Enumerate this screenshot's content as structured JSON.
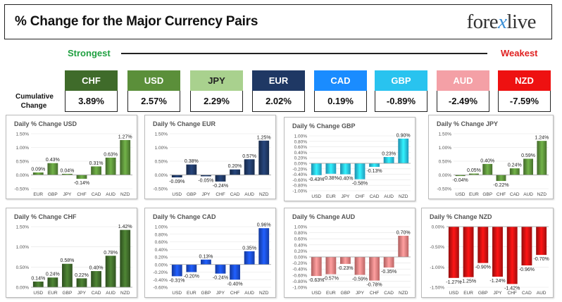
{
  "header": {
    "title": "% Change for the Major Currency Pairs",
    "logo_pre": "fore",
    "logo_x": "x",
    "logo_post": "live"
  },
  "strength": {
    "strongest": "Strongest",
    "weakest": "Weakest",
    "cumulative_label": "Cumulative Change"
  },
  "currencies": [
    {
      "code": "CHF",
      "value": "3.89%",
      "color": "#3f6b2a",
      "text_color": "#ffffff"
    },
    {
      "code": "USD",
      "value": "2.57%",
      "color": "#5b8f3a",
      "text_color": "#ffffff"
    },
    {
      "code": "JPY",
      "value": "2.29%",
      "color": "#a9d18e",
      "text_color": "#222222"
    },
    {
      "code": "EUR",
      "value": "2.02%",
      "color": "#1f3864",
      "text_color": "#ffffff"
    },
    {
      "code": "CAD",
      "value": "0.19%",
      "color": "#1a8cff",
      "text_color": "#ffffff"
    },
    {
      "code": "GBP",
      "value": "-0.89%",
      "color": "#29c3ef",
      "text_color": "#ffffff"
    },
    {
      "code": "AUD",
      "value": "-2.49%",
      "color": "#f4a0a6",
      "text_color": "#ffffff"
    },
    {
      "code": "NZD",
      "value": "-7.59%",
      "color": "#ee1111",
      "text_color": "#ffffff"
    }
  ],
  "chart_data": [
    {
      "type": "bar",
      "title": "Daily % Change USD",
      "categories": [
        "EUR",
        "GBP",
        "JPY",
        "CHF",
        "CAD",
        "AUD",
        "NZD"
      ],
      "values": [
        0.09,
        0.43,
        0.04,
        -0.14,
        0.31,
        0.63,
        1.27
      ],
      "labels": [
        "0.09%",
        "0.43%",
        "0.04%",
        "-0.14%",
        "0.31%",
        "0.63%",
        "1.27%"
      ],
      "ylim": [
        -0.5,
        1.5
      ],
      "yticks": [
        -0.5,
        0,
        0.5,
        1,
        1.5
      ],
      "ytick_labels": [
        "-0.50%",
        "0.00%",
        "0.50%",
        "1.00%",
        "1.50%"
      ],
      "color": "#5b8f3a"
    },
    {
      "type": "bar",
      "title": "Daily % Change EUR",
      "categories": [
        "USD",
        "GBP",
        "JPY",
        "CHF",
        "CAD",
        "AUD",
        "NZD"
      ],
      "values": [
        -0.09,
        0.38,
        -0.05,
        -0.24,
        0.2,
        0.57,
        1.25
      ],
      "labels": [
        "-0.09%",
        "0.38%",
        "-0.05%",
        "-0.24%",
        "0.20%",
        "0.57%",
        "1.25%"
      ],
      "ylim": [
        -0.5,
        1.5
      ],
      "yticks": [
        -0.5,
        0,
        0.5,
        1,
        1.5
      ],
      "ytick_labels": [
        "-0.50%",
        "0.00%",
        "0.50%",
        "1.00%",
        "1.50%"
      ],
      "color": "#1f3864"
    },
    {
      "type": "bar",
      "title": "Daily % Change GBP",
      "categories": [
        "USD",
        "EUR",
        "JPY",
        "CHF",
        "CAD",
        "AUD",
        "NZD"
      ],
      "values": [
        -0.43,
        -0.38,
        -0.4,
        -0.58,
        -0.13,
        0.23,
        0.9
      ],
      "labels": [
        "-0.43%",
        "-0.38%",
        "-0.40%",
        "-0.58%",
        "-0.13%",
        "0.23%",
        "0.90%"
      ],
      "ylim": [
        -1.0,
        1.0
      ],
      "yticks": [
        -1,
        -0.8,
        -0.6,
        -0.4,
        -0.2,
        0,
        0.2,
        0.4,
        0.6,
        0.8,
        1
      ],
      "ytick_labels": [
        "-1.00%",
        "-0.80%",
        "-0.60%",
        "-0.40%",
        "-0.20%",
        "0.00%",
        "0.20%",
        "0.40%",
        "0.60%",
        "0.80%",
        "1.00%"
      ],
      "color": "#29c3ef"
    },
    {
      "type": "bar",
      "title": "Daily % Change JPY",
      "categories": [
        "USD",
        "EUR",
        "GBP",
        "CHF",
        "CAD",
        "AUD",
        "NZD"
      ],
      "values": [
        -0.04,
        0.05,
        0.4,
        -0.22,
        0.24,
        0.59,
        1.24
      ],
      "labels": [
        "-0.04%",
        "0.05%",
        "0.40%",
        "-0.22%",
        "0.24%",
        "0.59%",
        "1.24%"
      ],
      "ylim": [
        -0.5,
        1.5
      ],
      "yticks": [
        -0.5,
        0,
        0.5,
        1,
        1.5
      ],
      "ytick_labels": [
        "-0.50%",
        "0.00%",
        "0.50%",
        "1.00%",
        "1.50%"
      ],
      "color": "#5b8f3a"
    },
    {
      "type": "bar",
      "title": "Daily % Change CHF",
      "categories": [
        "USD",
        "EUR",
        "GBP",
        "JPY",
        "CAD",
        "AUD",
        "NZD"
      ],
      "values": [
        0.14,
        0.24,
        0.58,
        0.22,
        0.4,
        0.78,
        1.42
      ],
      "labels": [
        "0.14%",
        "0.24%",
        "0.58%",
        "0.22%",
        "0.40%",
        "0.78%",
        "1.42%"
      ],
      "ylim": [
        0,
        1.5
      ],
      "yticks": [
        0,
        0.5,
        1,
        1.5
      ],
      "ytick_labels": [
        "0.00%",
        "0.50%",
        "1.00%",
        "1.50%"
      ],
      "color": "#3f6b2a"
    },
    {
      "type": "bar",
      "title": "Daily % Change CAD",
      "categories": [
        "USD",
        "EUR",
        "GBP",
        "JPY",
        "CHF",
        "AUD",
        "NZD"
      ],
      "values": [
        -0.31,
        -0.2,
        0.13,
        -0.24,
        -0.4,
        0.35,
        0.96
      ],
      "labels": [
        "-0.31%",
        "-0.20%",
        "0.13%",
        "-0.24%",
        "-0.40%",
        "0.35%",
        "0.96%"
      ],
      "ylim": [
        -0.6,
        1.0
      ],
      "yticks": [
        -0.6,
        -0.4,
        -0.2,
        0,
        0.2,
        0.4,
        0.6,
        0.8,
        1
      ],
      "ytick_labels": [
        "-0.60%",
        "-0.40%",
        "-0.20%",
        "0.00%",
        "0.20%",
        "0.40%",
        "0.60%",
        "0.80%",
        "1.00%"
      ],
      "color": "#1a4dd6"
    },
    {
      "type": "bar",
      "title": "Daily % Change AUD",
      "categories": [
        "USD",
        "EUR",
        "GBP",
        "JPY",
        "CHF",
        "CAD",
        "NZD"
      ],
      "values": [
        -0.63,
        -0.57,
        -0.23,
        -0.59,
        -0.78,
        -0.35,
        0.7
      ],
      "labels": [
        "-0.63%",
        "-0.57%",
        "-0.23%",
        "-0.59%",
        "-0.78%",
        "-0.35%",
        "0.70%"
      ],
      "ylim": [
        -1.0,
        1.0
      ],
      "yticks": [
        -1,
        -0.8,
        -0.6,
        -0.4,
        -0.2,
        0,
        0.2,
        0.4,
        0.6,
        0.8,
        1
      ],
      "ytick_labels": [
        "-1.00%",
        "-0.80%",
        "-0.60%",
        "-0.40%",
        "-0.20%",
        "0.00%",
        "0.20%",
        "0.40%",
        "0.60%",
        "0.80%",
        "1.00%"
      ],
      "color": "#f08080"
    },
    {
      "type": "bar",
      "title": "Daily % Change NZD",
      "categories": [
        "USD",
        "EUR",
        "GBP",
        "JPY",
        "CHF",
        "CAD",
        "AUD"
      ],
      "values": [
        -1.27,
        -1.25,
        -0.9,
        -1.24,
        -1.42,
        -0.96,
        -0.7
      ],
      "labels": [
        "-1.27%",
        "-1.25%",
        "-0.90%",
        "-1.24%",
        "-1.42%",
        "-0.96%",
        "-0.70%"
      ],
      "ylim": [
        -1.5,
        0
      ],
      "yticks": [
        -1.5,
        -1,
        -0.5,
        0
      ],
      "ytick_labels": [
        "-1.50%",
        "-1.00%",
        "-0.50%",
        "0.00%"
      ],
      "color": "#cc1111"
    }
  ]
}
